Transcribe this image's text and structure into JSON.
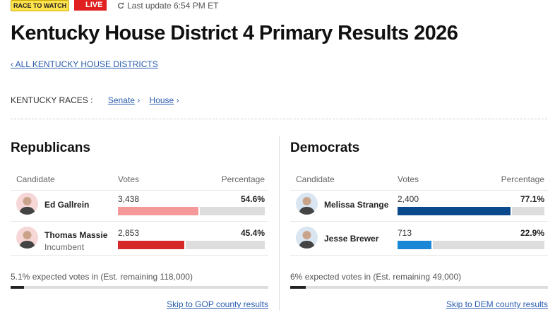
{
  "header": {
    "badge": "RACE TO WATCH",
    "live": "LIVE",
    "last_update": "Last update 6:54 PM ET",
    "title": "Kentucky House District 4 Primary Results 2026",
    "back_link": "ALL KENTUCKY HOUSE DISTRICTS"
  },
  "races_nav": {
    "label": "KENTUCKY RACES :",
    "links": [
      "Senate",
      "House"
    ]
  },
  "parties": [
    {
      "name": "Republicans",
      "columns": [
        "Candidate",
        "Votes",
        "Percentage"
      ],
      "candidates": [
        {
          "name": "Ed Gallrein",
          "votes": "3,438",
          "percentage": {
            "value": 54.6,
            "label": "54.6%"
          },
          "color": "#f4989a"
        },
        {
          "name": "Thomas Massie",
          "note": "Incumbent",
          "votes": "2,853",
          "percentage": {
            "value": 45.4,
            "label": "45.4%"
          },
          "color": "#d62a2a"
        }
      ],
      "expected": {
        "value": 5.1,
        "label": "5.1%"
      },
      "expected_text": "expected votes in (Est. remaining 118,000)",
      "skip_link": "Skip to GOP county results"
    },
    {
      "name": "Democrats",
      "columns": [
        "Candidate",
        "Votes",
        "Percentage"
      ],
      "candidates": [
        {
          "name": "Melissa Strange",
          "votes": "2,400",
          "percentage": {
            "value": 77.1,
            "label": "77.1%"
          },
          "color": "#0a4a8c"
        },
        {
          "name": "Jesse Brewer",
          "votes": "713",
          "percentage": {
            "value": 22.9,
            "label": "22.9%"
          },
          "color": "#1a86d6"
        }
      ],
      "expected": {
        "value": 6,
        "label": "6%"
      },
      "expected_text": "expected votes in (Est. remaining 49,000)",
      "skip_link": "Skip to DEM county results"
    }
  ]
}
